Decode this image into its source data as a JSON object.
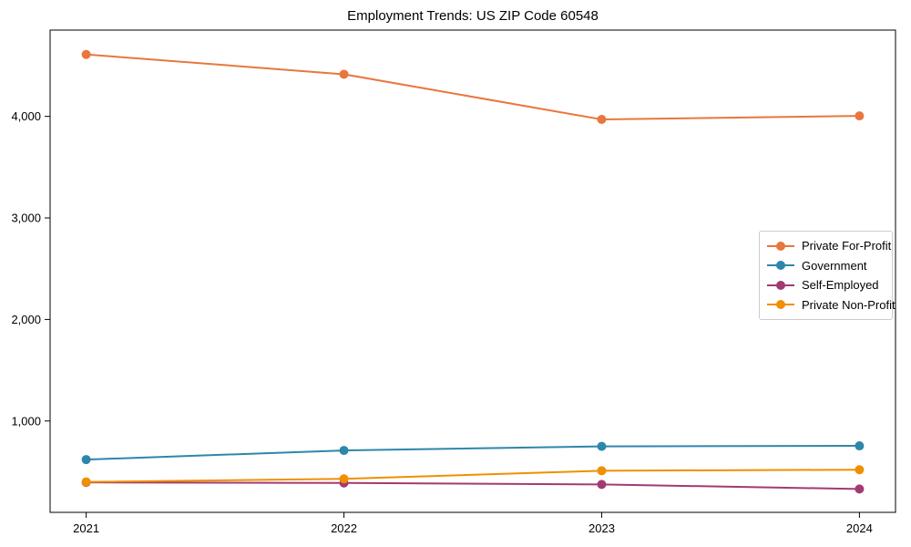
{
  "chart_data": {
    "type": "line",
    "title": "Employment Trends: US ZIP Code 60548",
    "x": [
      2021,
      2022,
      2023,
      2024
    ],
    "xtick_labels": [
      "2021",
      "2022",
      "2023",
      "2024"
    ],
    "yticks": [
      1000,
      2000,
      3000,
      4000
    ],
    "ytick_labels": [
      "1,000",
      "2,000",
      "3,000",
      "4,000"
    ],
    "xlim": [
      2020.86,
      2024.14
    ],
    "ylim": [
      100,
      4850
    ],
    "grid": false,
    "legend_position": "center-right",
    "xlabel": "",
    "ylabel": "",
    "marker": "circle",
    "line_width": 2,
    "marker_radius": 5,
    "axis_color": "#000000",
    "background_color": "#ffffff",
    "series": [
      {
        "name": "Private For-Profit",
        "color": "#E8773D",
        "values": [
          4610,
          4415,
          3970,
          4005
        ]
      },
      {
        "name": "Government",
        "color": "#2E86AB",
        "values": [
          620,
          710,
          750,
          755
        ]
      },
      {
        "name": "Self-Employed",
        "color": "#A23B72",
        "values": [
          395,
          390,
          375,
          330
        ]
      },
      {
        "name": "Private Non-Profit",
        "color": "#F18F01",
        "values": [
          400,
          430,
          510,
          520
        ]
      }
    ]
  }
}
